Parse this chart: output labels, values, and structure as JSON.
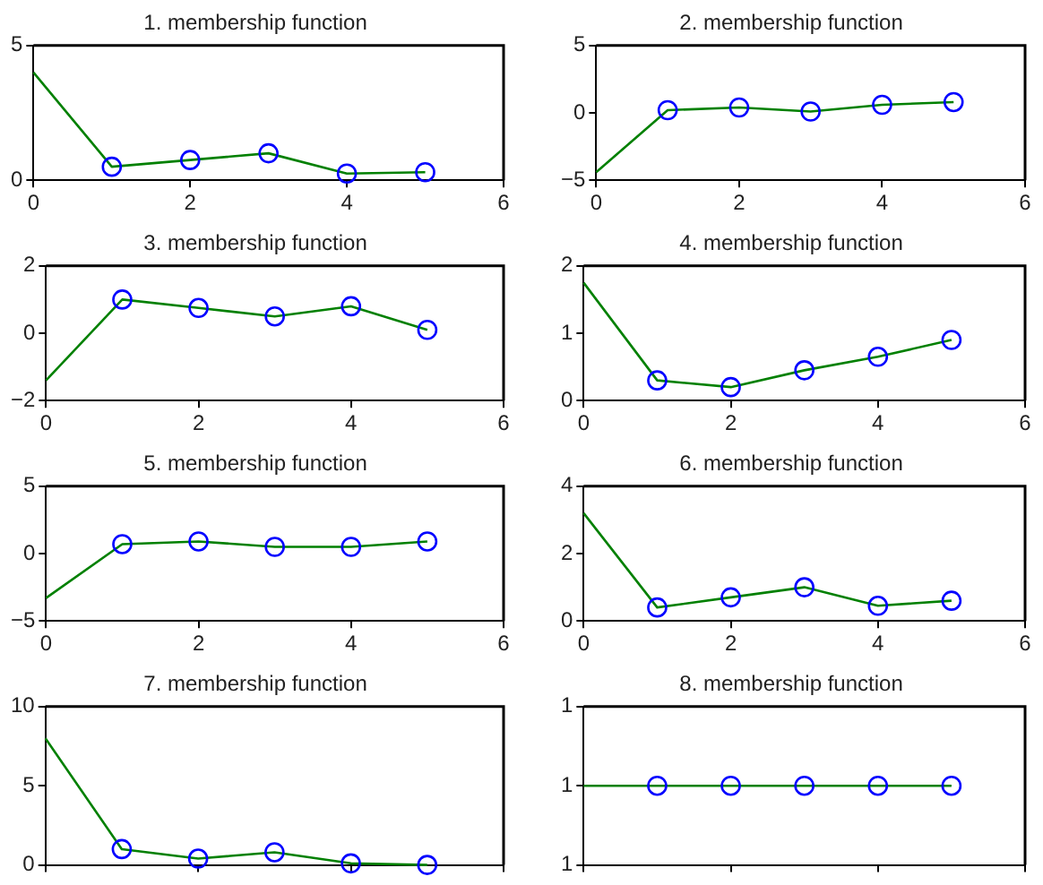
{
  "chart_data": [
    {
      "type": "line",
      "title": "1. membership function",
      "xlim": [
        0,
        6
      ],
      "xticks": [
        0,
        2,
        4,
        6
      ],
      "ylim": [
        0,
        5
      ],
      "yticks": [
        0,
        5
      ],
      "grid": false,
      "legend": false,
      "series": [
        {
          "type": "line",
          "color": "#008000",
          "marker": "none",
          "x": [
            0,
            1,
            2,
            3,
            4,
            5
          ],
          "values": [
            4.0,
            0.5,
            0.75,
            1.0,
            0.25,
            0.3
          ]
        },
        {
          "type": "scatter",
          "color": "#0000ff",
          "marker": "circle",
          "x": [
            1,
            2,
            3,
            4,
            5
          ],
          "values": [
            0.5,
            0.75,
            1.0,
            0.25,
            0.3
          ]
        }
      ]
    },
    {
      "type": "line",
      "title": "2. membership function",
      "xlim": [
        0,
        6
      ],
      "xticks": [
        0,
        2,
        4,
        6
      ],
      "ylim": [
        -5,
        5
      ],
      "yticks": [
        {
          "value": -5,
          "label": "−5"
        },
        0,
        5
      ],
      "grid": false,
      "legend": false,
      "series": [
        {
          "type": "line",
          "color": "#008000",
          "marker": "none",
          "x": [
            0,
            1,
            2,
            3,
            4,
            5
          ],
          "values": [
            -4.4,
            0.2,
            0.4,
            0.1,
            0.6,
            0.8
          ]
        },
        {
          "type": "scatter",
          "color": "#0000ff",
          "marker": "circle",
          "x": [
            1,
            2,
            3,
            4,
            5
          ],
          "values": [
            0.2,
            0.4,
            0.1,
            0.6,
            0.8
          ]
        }
      ]
    },
    {
      "type": "line",
      "title": "3. membership function",
      "xlim": [
        0,
        6
      ],
      "xticks": [
        0,
        2,
        4,
        6
      ],
      "ylim": [
        -2,
        2
      ],
      "yticks": [
        {
          "value": -2,
          "label": "−2"
        },
        0,
        2
      ],
      "grid": false,
      "legend": false,
      "series": [
        {
          "type": "line",
          "color": "#008000",
          "marker": "none",
          "x": [
            0,
            1,
            2,
            3,
            4,
            5
          ],
          "values": [
            -1.4,
            1.0,
            0.75,
            0.5,
            0.8,
            0.1
          ]
        },
        {
          "type": "scatter",
          "color": "#0000ff",
          "marker": "circle",
          "x": [
            1,
            2,
            3,
            4,
            5
          ],
          "values": [
            1.0,
            0.75,
            0.5,
            0.8,
            0.1
          ]
        }
      ]
    },
    {
      "type": "line",
      "title": "4. membership function",
      "xlim": [
        0,
        6
      ],
      "xticks": [
        0,
        2,
        4,
        6
      ],
      "ylim": [
        0,
        2
      ],
      "yticks": [
        0,
        1,
        2
      ],
      "grid": false,
      "legend": false,
      "series": [
        {
          "type": "line",
          "color": "#008000",
          "marker": "none",
          "x": [
            0,
            1,
            2,
            3,
            4,
            5
          ],
          "values": [
            1.75,
            0.3,
            0.2,
            0.45,
            0.65,
            0.9
          ]
        },
        {
          "type": "scatter",
          "color": "#0000ff",
          "marker": "circle",
          "x": [
            1,
            2,
            3,
            4,
            5
          ],
          "values": [
            0.3,
            0.2,
            0.45,
            0.65,
            0.9
          ]
        }
      ]
    },
    {
      "type": "line",
      "title": "5. membership function",
      "xlim": [
        0,
        6
      ],
      "xticks": [
        0,
        2,
        4,
        6
      ],
      "ylim": [
        -5,
        5
      ],
      "yticks": [
        {
          "value": -5,
          "label": "−5"
        },
        0,
        5
      ],
      "grid": false,
      "legend": false,
      "series": [
        {
          "type": "line",
          "color": "#008000",
          "marker": "none",
          "x": [
            0,
            1,
            2,
            3,
            4,
            5
          ],
          "values": [
            -3.3,
            0.7,
            0.9,
            0.5,
            0.5,
            0.9
          ]
        },
        {
          "type": "scatter",
          "color": "#0000ff",
          "marker": "circle",
          "x": [
            1,
            2,
            3,
            4,
            5
          ],
          "values": [
            0.7,
            0.9,
            0.5,
            0.5,
            0.9
          ]
        }
      ]
    },
    {
      "type": "line",
      "title": "6. membership function",
      "xlim": [
        0,
        6
      ],
      "xticks": [
        0,
        2,
        4,
        6
      ],
      "ylim": [
        0,
        4
      ],
      "yticks": [
        0,
        2,
        4
      ],
      "grid": false,
      "legend": false,
      "series": [
        {
          "type": "line",
          "color": "#008000",
          "marker": "none",
          "x": [
            0,
            1,
            2,
            3,
            4,
            5
          ],
          "values": [
            3.2,
            0.4,
            0.7,
            1.0,
            0.45,
            0.6
          ]
        },
        {
          "type": "scatter",
          "color": "#0000ff",
          "marker": "circle",
          "x": [
            1,
            2,
            3,
            4,
            5
          ],
          "values": [
            0.4,
            0.7,
            1.0,
            0.45,
            0.6
          ]
        }
      ]
    },
    {
      "type": "line",
      "title": "7. membership function",
      "xlim": [
        0,
        6
      ],
      "xticks": [
        0,
        2,
        4,
        6
      ],
      "ylim": [
        0,
        10
      ],
      "yticks": [
        0,
        5,
        10
      ],
      "grid": false,
      "legend": false,
      "tick_labels": "y",
      "series": [
        {
          "type": "line",
          "color": "#008000",
          "marker": "none",
          "x": [
            0,
            1,
            2,
            3,
            4,
            5
          ],
          "values": [
            8.0,
            1.0,
            0.4,
            0.8,
            0.1,
            0
          ]
        },
        {
          "type": "scatter",
          "color": "#0000ff",
          "marker": "circle",
          "x": [
            1,
            2,
            3,
            4,
            5
          ],
          "values": [
            1.0,
            0.4,
            0.8,
            0.1,
            0
          ]
        }
      ]
    },
    {
      "type": "line",
      "title": "8. membership function",
      "xlim": [
        0,
        6
      ],
      "xticks": [
        0,
        2,
        4,
        6
      ],
      "ylim": [
        0.5,
        1.5
      ],
      "yticks": [
        {
          "value": 0.5,
          "label": "1"
        },
        {
          "value": 1,
          "label": "1"
        },
        {
          "value": 1.5,
          "label": "1"
        }
      ],
      "grid": false,
      "legend": false,
      "tick_labels": "y",
      "series": [
        {
          "type": "line",
          "color": "#008000",
          "marker": "none",
          "x": [
            0,
            1,
            2,
            3,
            4,
            5
          ],
          "values": [
            1,
            1,
            1,
            1,
            1,
            1
          ]
        },
        {
          "type": "scatter",
          "color": "#0000ff",
          "marker": "circle",
          "x": [
            1,
            2,
            3,
            4,
            5
          ],
          "values": [
            1,
            1,
            1,
            1,
            1
          ]
        }
      ]
    }
  ]
}
